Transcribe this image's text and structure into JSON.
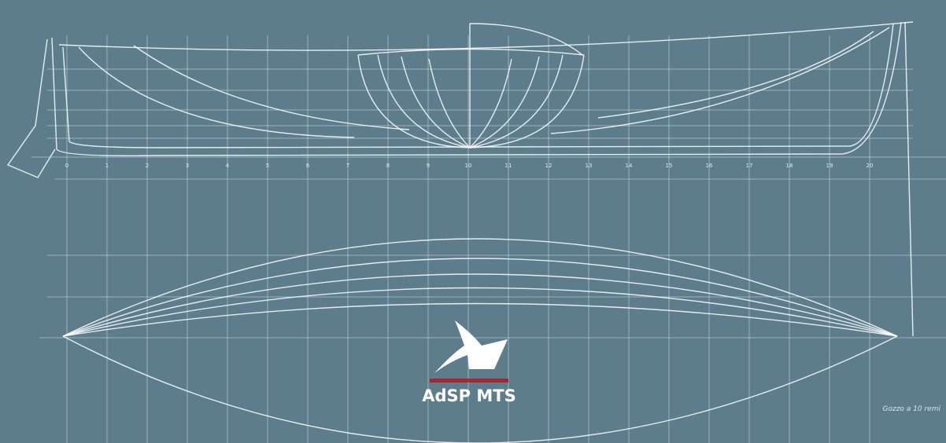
{
  "logo": {
    "text": "AdSP MTS"
  },
  "drawing": {
    "stations": [
      "0",
      "1",
      "2",
      "3",
      "4",
      "5",
      "6",
      "7",
      "8",
      "9",
      "10",
      "11",
      "12",
      "13",
      "14",
      "15",
      "16",
      "17",
      "18",
      "19",
      "20"
    ],
    "caption": "Gozzo a 10 remi"
  }
}
